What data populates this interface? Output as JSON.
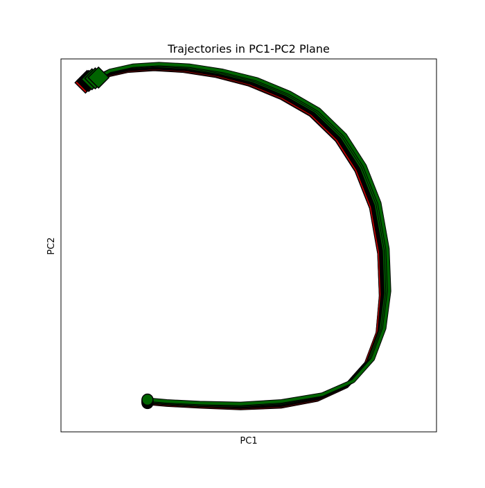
{
  "chart_data": {
    "type": "line",
    "title": "Trajectories in PC1-PC2 Plane",
    "xlabel": "PC1",
    "ylabel": "PC2",
    "xlim": [
      -1.15,
      1.15
    ],
    "ylim": [
      -1.1,
      1.1
    ],
    "grid": false,
    "ticks_visible": false,
    "legend": "none",
    "colors": {
      "red": "#cc0000",
      "green": "#006400",
      "black": "#000000",
      "outline": "#000000"
    },
    "start_marker": "circle",
    "end_marker": "diamond",
    "series": [
      {
        "color": "red",
        "x": [
          -0.62,
          -0.5,
          -0.3,
          -0.05,
          0.2,
          0.42,
          0.6,
          0.72,
          0.79,
          0.81,
          0.8,
          0.75,
          0.66,
          0.54,
          0.38,
          0.2,
          0.0,
          -0.2,
          -0.4,
          -0.58,
          -0.74,
          -0.88,
          -1.0
        ],
        "y": [
          -0.93,
          -0.94,
          -0.95,
          -0.96,
          -0.95,
          -0.91,
          -0.83,
          -0.7,
          -0.52,
          -0.3,
          -0.05,
          0.22,
          0.44,
          0.62,
          0.77,
          0.87,
          0.95,
          1.0,
          1.03,
          1.04,
          1.03,
          1.0,
          0.96
        ]
      },
      {
        "color": "red",
        "x": [
          -0.62,
          -0.5,
          -0.3,
          -0.05,
          0.2,
          0.42,
          0.6,
          0.72,
          0.79,
          0.81,
          0.8,
          0.75,
          0.66,
          0.54,
          0.38,
          0.2,
          0.0,
          -0.2,
          -0.4,
          -0.58,
          -0.74,
          -0.88,
          -0.98
        ],
        "y": [
          -0.925,
          -0.935,
          -0.945,
          -0.955,
          -0.945,
          -0.905,
          -0.825,
          -0.695,
          -0.515,
          -0.295,
          -0.045,
          0.225,
          0.445,
          0.625,
          0.775,
          0.875,
          0.955,
          1.005,
          1.035,
          1.045,
          1.035,
          1.005,
          0.97
        ]
      },
      {
        "color": "black",
        "x": [
          -0.62,
          -0.5,
          -0.3,
          -0.05,
          0.2,
          0.42,
          0.61,
          0.73,
          0.8,
          0.82,
          0.81,
          0.76,
          0.67,
          0.55,
          0.39,
          0.21,
          0.01,
          -0.19,
          -0.39,
          -0.58,
          -0.74,
          -0.88,
          -0.99
        ],
        "y": [
          -0.92,
          -0.93,
          -0.94,
          -0.95,
          -0.94,
          -0.9,
          -0.82,
          -0.69,
          -0.51,
          -0.29,
          -0.04,
          0.23,
          0.45,
          0.63,
          0.78,
          0.88,
          0.96,
          1.01,
          1.04,
          1.05,
          1.04,
          1.01,
          0.97
        ]
      },
      {
        "color": "green",
        "x": [
          -0.62,
          -0.5,
          -0.3,
          -0.05,
          0.2,
          0.43,
          0.62,
          0.74,
          0.81,
          0.84,
          0.83,
          0.78,
          0.69,
          0.57,
          0.41,
          0.23,
          0.03,
          -0.18,
          -0.38,
          -0.57,
          -0.73,
          -0.87,
          -0.96
        ],
        "y": [
          -0.92,
          -0.93,
          -0.94,
          -0.945,
          -0.93,
          -0.89,
          -0.81,
          -0.68,
          -0.5,
          -0.28,
          -0.03,
          0.24,
          0.46,
          0.64,
          0.79,
          0.89,
          0.97,
          1.02,
          1.05,
          1.06,
          1.05,
          1.02,
          0.98
        ]
      },
      {
        "color": "green",
        "x": [
          -0.62,
          -0.5,
          -0.3,
          -0.05,
          0.2,
          0.44,
          0.63,
          0.75,
          0.82,
          0.85,
          0.84,
          0.79,
          0.7,
          0.58,
          0.42,
          0.24,
          0.04,
          -0.17,
          -0.37,
          -0.56,
          -0.72,
          -0.86,
          -0.94
        ],
        "y": [
          -0.915,
          -0.925,
          -0.935,
          -0.94,
          -0.925,
          -0.885,
          -0.805,
          -0.675,
          -0.495,
          -0.275,
          -0.025,
          0.245,
          0.465,
          0.645,
          0.795,
          0.895,
          0.975,
          1.025,
          1.055,
          1.065,
          1.055,
          1.025,
          0.985
        ]
      },
      {
        "color": "green",
        "x": [
          -0.62,
          -0.5,
          -0.3,
          -0.05,
          0.2,
          0.45,
          0.64,
          0.76,
          0.83,
          0.86,
          0.85,
          0.8,
          0.71,
          0.59,
          0.43,
          0.25,
          0.05,
          -0.16,
          -0.36,
          -0.55,
          -0.71,
          -0.85,
          -0.92
        ],
        "y": [
          -0.91,
          -0.92,
          -0.93,
          -0.935,
          -0.92,
          -0.88,
          -0.8,
          -0.67,
          -0.49,
          -0.27,
          -0.02,
          0.25,
          0.47,
          0.65,
          0.8,
          0.9,
          0.98,
          1.03,
          1.06,
          1.07,
          1.06,
          1.03,
          0.99
        ]
      }
    ]
  }
}
